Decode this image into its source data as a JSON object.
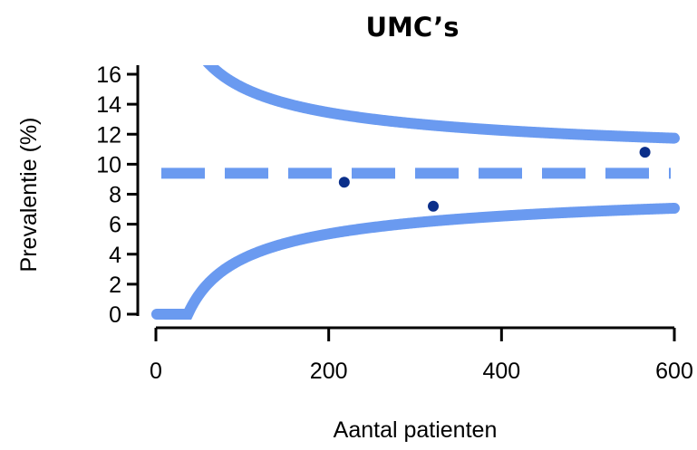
{
  "chart_data": {
    "type": "scatter",
    "title": "UMC’s",
    "xlabel": "Aantal patienten",
    "ylabel": "Prevalentie (%)",
    "xlim": [
      0,
      600
    ],
    "ylim": [
      0,
      16
    ],
    "xticks": [
      0,
      200,
      400,
      600
    ],
    "yticks": [
      0,
      2,
      4,
      6,
      8,
      10,
      12,
      14,
      16
    ],
    "grid": false,
    "colors": {
      "points": "#0b2f8a",
      "lines": "#6a9af0"
    },
    "reference_line": {
      "style": "dashed",
      "y": 9.4
    },
    "control_limits": {
      "p": 0.094,
      "z": 1.96,
      "n_min": 1,
      "n_max": 600
    },
    "points": [
      {
        "x": 218,
        "y": 8.8
      },
      {
        "x": 321,
        "y": 7.2
      },
      {
        "x": 566,
        "y": 10.8
      }
    ]
  }
}
